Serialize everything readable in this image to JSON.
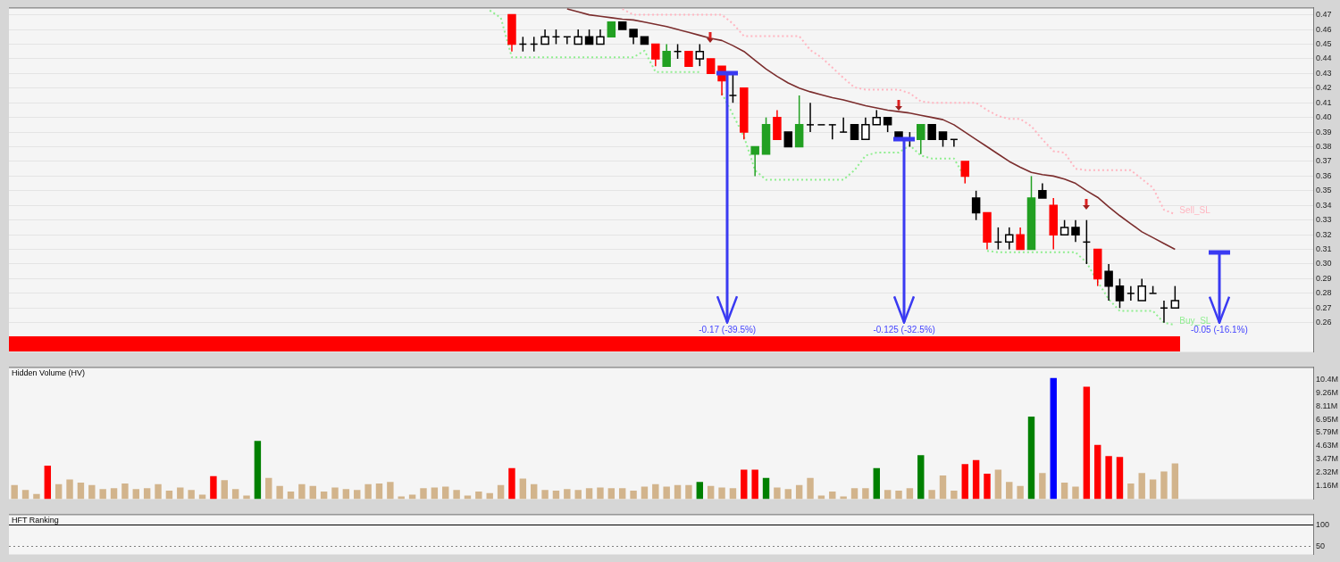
{
  "chart_data": [
    {
      "type": "candlestick",
      "categories": [
        null,
        null,
        null,
        null,
        null,
        null,
        null,
        null,
        null,
        null,
        null,
        null,
        null,
        null,
        null,
        null,
        null,
        null,
        null,
        null,
        null,
        null,
        null,
        null,
        null,
        null,
        null,
        null,
        null,
        null,
        null,
        null,
        null,
        null,
        null,
        null,
        null,
        null,
        null,
        null,
        null,
        null,
        null,
        null,
        null,
        null,
        null,
        null,
        null,
        null,
        null,
        null,
        null,
        null,
        null,
        null,
        null,
        null,
        null,
        null,
        null,
        null,
        null,
        null,
        null,
        null,
        null,
        null,
        null,
        null,
        null,
        null,
        null,
        null,
        null,
        null,
        null,
        null,
        null,
        null,
        null,
        null,
        null,
        null,
        null,
        null,
        null,
        null,
        null,
        null,
        null,
        null,
        null,
        null,
        null,
        null,
        null,
        null,
        null,
        null,
        null,
        null,
        null,
        null,
        null,
        null,
        null,
        null,
        null,
        null,
        null,
        null,
        null,
        null,
        null,
        null,
        null,
        null
      ],
      "ohlc": [
        null,
        null,
        null,
        null,
        null,
        null,
        null,
        null,
        null,
        null,
        null,
        null,
        null,
        null,
        null,
        null,
        null,
        null,
        null,
        null,
        null,
        null,
        null,
        null,
        null,
        null,
        null,
        null,
        null,
        null,
        null,
        null,
        null,
        null,
        null,
        null,
        null,
        null,
        null,
        null,
        null,
        null,
        null,
        null,
        null,
        [
          0.47,
          0.47,
          0.445,
          0.45
        ],
        [
          0.45,
          0.455,
          0.445,
          0.45
        ],
        [
          0.45,
          0.455,
          0.445,
          0.45
        ],
        [
          0.45,
          0.46,
          0.45,
          0.455
        ],
        [
          0.455,
          0.46,
          0.45,
          0.455
        ],
        [
          0.455,
          0.455,
          0.45,
          0.455
        ],
        [
          0.45,
          0.46,
          0.45,
          0.455
        ],
        [
          0.455,
          0.46,
          0.45,
          0.45
        ],
        [
          0.45,
          0.46,
          0.45,
          0.455
        ],
        [
          0.455,
          0.465,
          0.455,
          0.465
        ],
        [
          0.465,
          0.465,
          0.46,
          0.46
        ],
        [
          0.46,
          0.46,
          0.45,
          0.455
        ],
        [
          0.455,
          0.455,
          0.45,
          0.45
        ],
        [
          0.45,
          0.45,
          0.435,
          0.44
        ],
        [
          0.435,
          0.45,
          0.435,
          0.445
        ],
        [
          0.445,
          0.45,
          0.44,
          0.445
        ],
        [
          0.445,
          0.445,
          0.435,
          0.435
        ],
        [
          0.44,
          0.45,
          0.435,
          0.445
        ],
        [
          0.44,
          0.44,
          0.43,
          0.43
        ],
        [
          0.435,
          0.435,
          0.415,
          0.425
        ],
        [
          0.415,
          0.43,
          0.41,
          0.415
        ],
        [
          0.42,
          0.42,
          0.385,
          0.39
        ],
        [
          0.38,
          0.38,
          0.36,
          0.375
        ],
        [
          0.375,
          0.4,
          0.375,
          0.395
        ],
        [
          0.4,
          0.405,
          0.385,
          0.385
        ],
        [
          0.39,
          0.39,
          0.38,
          0.38
        ],
        [
          0.38,
          0.415,
          0.38,
          0.395
        ],
        [
          0.395,
          0.41,
          0.39,
          0.395
        ],
        [
          0.395,
          0.395,
          0.395,
          0.395
        ],
        [
          0.395,
          0.395,
          0.385,
          0.395
        ],
        [
          0.39,
          0.4,
          0.39,
          0.39
        ],
        [
          0.395,
          0.395,
          0.385,
          0.385
        ],
        [
          0.385,
          0.4,
          0.385,
          0.395
        ],
        [
          0.395,
          0.405,
          0.395,
          0.4
        ],
        [
          0.4,
          0.4,
          0.39,
          0.395
        ],
        [
          0.39,
          0.39,
          0.385,
          0.385
        ],
        [
          0.385,
          0.39,
          0.38,
          0.385
        ],
        [
          0.385,
          0.395,
          0.375,
          0.395
        ],
        [
          0.395,
          0.395,
          0.385,
          0.385
        ],
        [
          0.39,
          0.39,
          0.38,
          0.385
        ],
        [
          0.385,
          0.385,
          0.38,
          0.385
        ],
        [
          0.37,
          0.37,
          0.355,
          0.36
        ],
        [
          0.345,
          0.35,
          0.33,
          0.335
        ],
        [
          0.335,
          0.335,
          0.31,
          0.315
        ],
        [
          0.315,
          0.325,
          0.31,
          0.315
        ],
        [
          0.315,
          0.325,
          0.31,
          0.32
        ],
        [
          0.32,
          0.325,
          0.31,
          0.31
        ],
        [
          0.31,
          0.36,
          0.31,
          0.345
        ],
        [
          0.35,
          0.355,
          0.345,
          0.345
        ],
        [
          0.34,
          0.345,
          0.31,
          0.32
        ],
        [
          0.32,
          0.33,
          0.32,
          0.325
        ],
        [
          0.325,
          0.33,
          0.315,
          0.32
        ],
        [
          0.315,
          0.33,
          0.3,
          0.315
        ],
        [
          0.31,
          0.31,
          0.285,
          0.29
        ],
        [
          0.295,
          0.3,
          0.275,
          0.285
        ],
        [
          0.285,
          0.29,
          0.27,
          0.275
        ],
        [
          0.28,
          0.285,
          0.275,
          0.28
        ],
        [
          0.275,
          0.29,
          0.275,
          0.285
        ],
        [
          0.28,
          0.285,
          0.28,
          0.28
        ],
        [
          0.27,
          0.275,
          0.26,
          0.27
        ],
        [
          0.27,
          0.285,
          0.27,
          0.275
        ],
        null,
        null,
        null,
        null,
        null,
        null,
        null,
        null,
        null,
        null,
        null,
        null
      ],
      "colors": [
        null,
        null,
        null,
        null,
        null,
        null,
        null,
        null,
        null,
        null,
        null,
        null,
        null,
        null,
        null,
        null,
        null,
        null,
        null,
        null,
        null,
        null,
        null,
        null,
        null,
        null,
        null,
        null,
        null,
        null,
        null,
        null,
        null,
        null,
        null,
        null,
        null,
        null,
        null,
        null,
        null,
        null,
        null,
        null,
        null,
        "#ff0000",
        "#000000",
        "#000000",
        "#ffffff",
        "#000000",
        "#000000",
        "#ffffff",
        "#000000",
        "#ffffff",
        "#22a022",
        "#000000",
        "#000000",
        "#000000",
        "#ff0000",
        "#22a022",
        "#000000",
        "#ff0000",
        "#ffffff",
        "#ff0000",
        "#ff0000",
        "#000000",
        "#ff0000",
        "#22a022",
        "#22a022",
        "#ff0000",
        "#000000",
        "#22a022",
        "#000000",
        "#000000",
        "#000000",
        "#000000",
        "#000000",
        "#ffffff",
        "#ffffff",
        "#000000",
        "#000000",
        "#000000",
        "#22a022",
        "#000000",
        "#000000",
        "#000000",
        "#ff0000",
        "#000000",
        "#ff0000",
        "#000000",
        "#ffffff",
        "#ff0000",
        "#22a022",
        "#000000",
        "#ff0000",
        "#ffffff",
        "#000000",
        "#000000",
        "#ff0000",
        "#000000",
        "#000000",
        "#000000",
        "#ffffff",
        "#000000",
        "#000000",
        "#ffffff",
        null,
        null,
        null,
        null,
        null,
        null,
        null,
        null,
        null,
        null,
        null,
        null
      ],
      "series": [
        {
          "type": "line",
          "color": "#7b2d2d",
          "values": [
            null,
            null,
            null,
            null,
            null,
            null,
            null,
            null,
            null,
            null,
            null,
            null,
            null,
            null,
            null,
            null,
            null,
            null,
            null,
            null,
            null,
            null,
            null,
            null,
            null,
            null,
            null,
            null,
            null,
            null,
            null,
            null,
            null,
            null,
            null,
            null,
            null,
            null,
            null,
            null,
            null,
            null,
            null,
            null,
            null,
            null,
            null,
            null,
            null,
            null,
            0.474,
            0.472,
            0.47,
            0.469,
            0.468,
            0.467,
            0.4665,
            0.465,
            0.4635,
            0.462,
            0.46,
            0.458,
            0.456,
            0.454,
            0.4525,
            0.449,
            0.445,
            0.439,
            0.433,
            0.428,
            0.4235,
            0.42,
            0.4175,
            0.4155,
            0.4135,
            0.412,
            0.41,
            0.408,
            0.4065,
            0.405,
            0.404,
            0.403,
            0.4015,
            0.4,
            0.3985,
            0.395,
            0.39,
            0.385,
            0.38,
            0.375,
            0.37,
            0.366,
            0.3625,
            0.361,
            0.36,
            0.358,
            0.355,
            0.35,
            0.3455,
            0.339,
            0.333,
            0.3275,
            0.322,
            0.318,
            0.314,
            0.31,
            null,
            null,
            null,
            null,
            null,
            null,
            null,
            null,
            null,
            null,
            null,
            null
          ]
        },
        {
          "type": "line",
          "name": "Sell_SL",
          "color": "#ffb6c1",
          "line_style": "dotted",
          "values": [
            null,
            null,
            null,
            null,
            null,
            null,
            null,
            null,
            null,
            null,
            null,
            null,
            null,
            null,
            null,
            null,
            null,
            null,
            null,
            null,
            null,
            null,
            null,
            null,
            null,
            null,
            null,
            null,
            null,
            null,
            null,
            null,
            null,
            null,
            null,
            null,
            null,
            null,
            null,
            null,
            null,
            null,
            null,
            null,
            null,
            null,
            null,
            null,
            null,
            null,
            null,
            null,
            null,
            null,
            null,
            0.474,
            0.47,
            0.47,
            0.47,
            0.47,
            0.47,
            0.47,
            0.47,
            0.47,
            0.47,
            0.464,
            0.4555,
            0.4555,
            0.4555,
            0.4555,
            0.4555,
            0.4555,
            0.446,
            0.441,
            0.434,
            0.427,
            0.4205,
            0.419,
            0.419,
            0.419,
            0.419,
            0.4165,
            0.411,
            0.41,
            0.41,
            0.41,
            0.41,
            0.41,
            0.405,
            0.401,
            0.399,
            0.399,
            0.394,
            0.385,
            0.377,
            0.376,
            0.365,
            0.364,
            0.364,
            0.364,
            0.364,
            0.364,
            0.358,
            0.352,
            0.337,
            0.334,
            null,
            null,
            null,
            null,
            null,
            null,
            null,
            null,
            null,
            null,
            null,
            null
          ]
        },
        {
          "type": "line",
          "name": "Buy_SL",
          "color": "#90ee90",
          "line_style": "dotted",
          "values": [
            null,
            null,
            null,
            null,
            null,
            null,
            null,
            null,
            null,
            null,
            null,
            null,
            null,
            null,
            null,
            null,
            null,
            null,
            null,
            null,
            null,
            null,
            null,
            null,
            null,
            null,
            null,
            null,
            null,
            null,
            null,
            null,
            null,
            null,
            null,
            null,
            null,
            null,
            null,
            null,
            null,
            null,
            null,
            0.473,
            0.468,
            0.441,
            0.441,
            0.441,
            0.441,
            0.441,
            0.441,
            0.441,
            0.441,
            0.441,
            0.441,
            0.441,
            0.441,
            0.4455,
            0.431,
            0.431,
            0.431,
            0.431,
            0.431,
            null,
            0.4165,
            0.402,
            0.387,
            0.364,
            0.3575,
            0.3575,
            0.3575,
            0.3575,
            0.3575,
            0.3575,
            0.3575,
            0.3575,
            0.364,
            0.374,
            0.376,
            0.376,
            0.376,
            0.381,
            0.374,
            0.372,
            0.372,
            0.372,
            0.359,
            null,
            0.309,
            0.308,
            0.308,
            0.308,
            0.308,
            0.308,
            0.308,
            0.308,
            0.308,
            0.301,
            0.288,
            0.276,
            0.268,
            0.268,
            0.268,
            0.268,
            0.26,
            0.2585,
            null,
            null,
            null,
            null,
            null,
            null,
            null,
            null,
            null,
            null,
            null,
            null
          ]
        }
      ],
      "ylim": [
        0.24,
        0.475
      ],
      "yticks": [
        0.26,
        0.27,
        0.28,
        0.29,
        {
          "value": 0.3,
          "label": "0.30"
        },
        0.31,
        0.32,
        0.33,
        0.34,
        0.35,
        0.36,
        0.37,
        0.38,
        0.39,
        {
          "value": 0.4,
          "label": "0.40"
        },
        0.41,
        0.42,
        0.43,
        0.44,
        0.45,
        0.46,
        0.47
      ],
      "grid": "y",
      "annotations": [
        {
          "text": "-0.17 (-39.5%)",
          "y": 0.43
        },
        {
          "text": "-0.125 (-32.5%)",
          "y": 0.385
        },
        "-0.05 (-16.1%)"
      ]
    },
    {
      "type": "bar",
      "title": "Hidden Volume (HV)",
      "categories": [
        null,
        null,
        null,
        null,
        null,
        null,
        null,
        null,
        null,
        null,
        null,
        null,
        null,
        null,
        null,
        null,
        null,
        null,
        null,
        null,
        null,
        null,
        null,
        null,
        null,
        null,
        null,
        null,
        null,
        null,
        null,
        null,
        null,
        null,
        null,
        null,
        null,
        null,
        null,
        null,
        null,
        null,
        null,
        null,
        null,
        null,
        null,
        null,
        null,
        null,
        null,
        null,
        null,
        null,
        null,
        null,
        null,
        null,
        null,
        null,
        null,
        null,
        null,
        null,
        null,
        null,
        null,
        null,
        null,
        null,
        null,
        null,
        null,
        null,
        null,
        null,
        null,
        null,
        null,
        null,
        null,
        null,
        null,
        null,
        null,
        null,
        null,
        null,
        null,
        null,
        null,
        null,
        null,
        null,
        null,
        null,
        null,
        null,
        null,
        null,
        null,
        null,
        null,
        null,
        null,
        null,
        null,
        null,
        null,
        null,
        null,
        null,
        null,
        null,
        null,
        null,
        null,
        null
      ],
      "values": [
        1.23,
        0.81,
        0.46,
        2.91,
        1.3,
        1.72,
        1.44,
        1.23,
        0.88,
        0.95,
        1.37,
        0.88,
        0.95,
        1.3,
        0.74,
        1.02,
        0.81,
        0.39,
        2.0,
        1.65,
        0.88,
        0.32,
        5.08,
        1.86,
        1.16,
        0.67,
        1.3,
        1.16,
        0.67,
        1.02,
        0.88,
        0.81,
        1.3,
        1.37,
        1.51,
        0.25,
        0.39,
        0.95,
        1.02,
        1.09,
        0.81,
        0.32,
        0.67,
        0.53,
        1.23,
        2.7,
        1.79,
        1.3,
        0.81,
        0.74,
        0.88,
        0.81,
        0.95,
        1.02,
        0.95,
        0.95,
        0.74,
        1.09,
        1.3,
        1.09,
        1.23,
        1.23,
        1.51,
        1.16,
        1.02,
        0.95,
        2.56,
        2.56,
        1.86,
        1.02,
        0.88,
        1.23,
        1.86,
        0.32,
        0.67,
        0.25,
        0.95,
        0.95,
        2.7,
        0.81,
        0.74,
        0.95,
        3.82,
        0.81,
        2.07,
        0.74,
        3.05,
        3.4,
        2.21,
        2.56,
        1.51,
        1.16,
        7.19,
        2.28,
        10.55,
        1.44,
        1.09,
        9.78,
        4.73,
        3.75,
        3.68,
        1.37,
        2.28,
        1.72,
        2.42,
        3.12,
        null,
        null,
        null,
        null,
        null,
        null,
        null,
        null,
        null,
        null,
        null,
        null
      ],
      "colors": [
        "#d2b48c",
        "#d2b48c",
        "#d2b48c",
        "#ff0000",
        "#d2b48c",
        "#d2b48c",
        "#d2b48c",
        "#d2b48c",
        "#d2b48c",
        "#d2b48c",
        "#d2b48c",
        "#d2b48c",
        "#d2b48c",
        "#d2b48c",
        "#d2b48c",
        "#d2b48c",
        "#d2b48c",
        "#d2b48c",
        "#ff0000",
        "#d2b48c",
        "#d2b48c",
        "#d2b48c",
        "#008000",
        "#d2b48c",
        "#d2b48c",
        "#d2b48c",
        "#d2b48c",
        "#d2b48c",
        "#d2b48c",
        "#d2b48c",
        "#d2b48c",
        "#d2b48c",
        "#d2b48c",
        "#d2b48c",
        "#d2b48c",
        "#d2b48c",
        "#d2b48c",
        "#d2b48c",
        "#d2b48c",
        "#d2b48c",
        "#d2b48c",
        "#d2b48c",
        "#d2b48c",
        "#d2b48c",
        "#d2b48c",
        "#ff0000",
        "#d2b48c",
        "#d2b48c",
        "#d2b48c",
        "#d2b48c",
        "#d2b48c",
        "#d2b48c",
        "#d2b48c",
        "#d2b48c",
        "#d2b48c",
        "#d2b48c",
        "#d2b48c",
        "#d2b48c",
        "#d2b48c",
        "#d2b48c",
        "#d2b48c",
        "#d2b48c",
        "#008000",
        "#d2b48c",
        "#d2b48c",
        "#d2b48c",
        "#ff0000",
        "#ff0000",
        "#008000",
        "#d2b48c",
        "#d2b48c",
        "#d2b48c",
        "#d2b48c",
        "#d2b48c",
        "#d2b48c",
        "#d2b48c",
        "#d2b48c",
        "#d2b48c",
        "#008000",
        "#d2b48c",
        "#d2b48c",
        "#d2b48c",
        "#008000",
        "#d2b48c",
        "#d2b48c",
        "#d2b48c",
        "#ff0000",
        "#ff0000",
        "#ff0000",
        "#d2b48c",
        "#d2b48c",
        "#d2b48c",
        "#008000",
        "#d2b48c",
        "#0000ff",
        "#d2b48c",
        "#d2b48c",
        "#ff0000",
        "#ff0000",
        "#ff0000",
        "#ff0000",
        "#d2b48c",
        "#d2b48c",
        "#d2b48c",
        "#d2b48c",
        "#d2b48c",
        null,
        null,
        null,
        null,
        null,
        null,
        null,
        null,
        null,
        null,
        null,
        null
      ],
      "ylim": [
        0,
        11.5
      ],
      "yticks": [
        {
          "value": 1.16,
          "label": "1.16M"
        },
        {
          "value": 2.32,
          "label": "2.32M"
        },
        {
          "value": 3.47,
          "label": "3.47M"
        },
        {
          "value": 4.63,
          "label": "4.63M"
        },
        {
          "value": 5.79,
          "label": "5.79M"
        },
        {
          "value": 6.95,
          "label": "6.95M"
        },
        {
          "value": 8.11,
          "label": "8.11M"
        },
        {
          "value": 9.26,
          "label": "9.26M"
        },
        {
          "value": 10.4,
          "label": "10.4M"
        }
      ]
    },
    {
      "type": "line",
      "title": "HFT Ranking",
      "categories": [
        null,
        null,
        null,
        null,
        null,
        null,
        null,
        null,
        null,
        null,
        null,
        null,
        null,
        null,
        null,
        null,
        null,
        null,
        null,
        null,
        null,
        null,
        null,
        null,
        null,
        null,
        null,
        null,
        null,
        null,
        null,
        null,
        null,
        null,
        null,
        null,
        null,
        null,
        null,
        null,
        null,
        null,
        null,
        null,
        null,
        null,
        null,
        null,
        null,
        null,
        null,
        null,
        null,
        null,
        null,
        null,
        null,
        null,
        null,
        null,
        null,
        null,
        null,
        null,
        null,
        null,
        null,
        null,
        null,
        null,
        null,
        null,
        null,
        null,
        null,
        null,
        null,
        null,
        null,
        null,
        null,
        null,
        null,
        null,
        null,
        null,
        null,
        null,
        null,
        null,
        null,
        null,
        null,
        null,
        null,
        null,
        null,
        null,
        null,
        null,
        null,
        null,
        null,
        null,
        null,
        null,
        null,
        null,
        null,
        null,
        null,
        null,
        null,
        null,
        null,
        null,
        null,
        null
      ],
      "ylim": [
        30,
        125
      ],
      "yticks": [
        50,
        100
      ],
      "ref_lines": [
        {
          "axis": "y",
          "value": 100,
          "color": "#000000",
          "line_style": "solid"
        },
        {
          "axis": "y",
          "value": 50,
          "color": "#808080",
          "line_style": "dotted"
        }
      ]
    }
  ]
}
